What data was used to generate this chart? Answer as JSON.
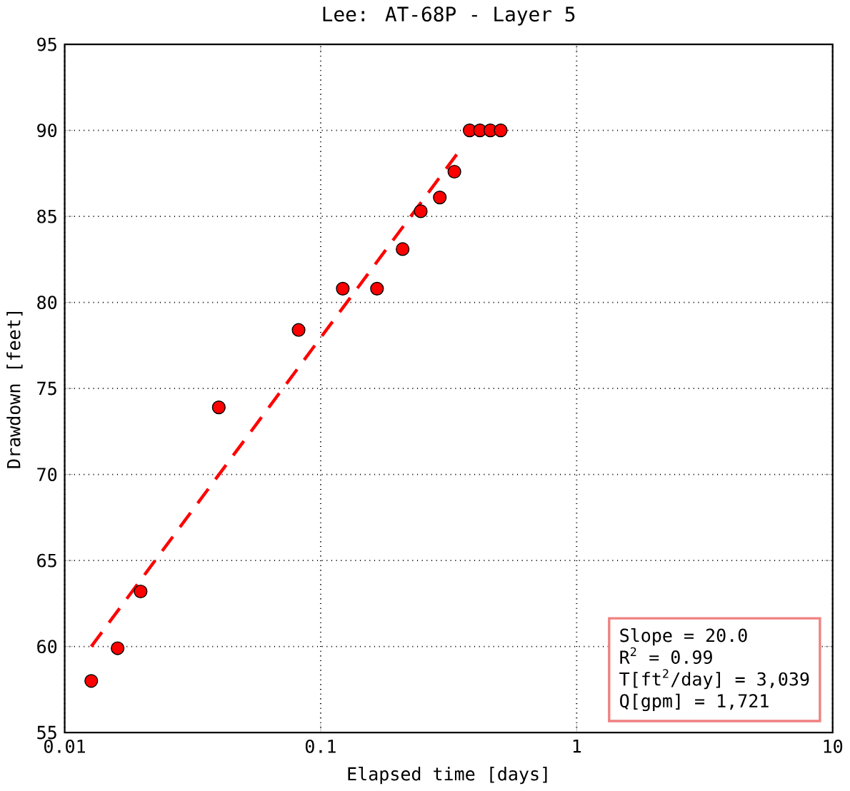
{
  "chart_data": {
    "type": "scatter",
    "title": "Lee: AT-68P - Layer 5",
    "xlabel": "Elapsed time [days]",
    "ylabel": "Drawdown [feet]",
    "log": "x",
    "xlim": [
      0.01,
      10
    ],
    "ylim": [
      55,
      95
    ],
    "xticks": [
      0.01,
      0.1,
      1,
      10
    ],
    "yticks": [
      55,
      60,
      65,
      70,
      75,
      80,
      85,
      90,
      95
    ],
    "grid": true,
    "marker": "circle",
    "series": [
      {
        "type": "scatter",
        "color": "#ff0000",
        "x": [
          0.0127,
          0.0161,
          0.0198,
          0.04,
          0.082,
          0.122,
          0.166,
          0.209,
          0.246,
          0.292,
          0.333,
          0.382,
          0.419,
          0.46,
          0.505
        ],
        "values": [
          58.0,
          59.9,
          63.2,
          73.9,
          78.4,
          80.8,
          80.8,
          83.1,
          85.3,
          86.1,
          87.6,
          90,
          90,
          90,
          90
        ]
      },
      {
        "type": "line",
        "color": "#ff0000",
        "line_style": "dashed",
        "marker": "none",
        "x": [
          0.0127,
          0.34
        ],
        "values": [
          60.0,
          88.6
        ]
      }
    ],
    "annotations": [
      "Slope         =  20.0",
      "R$^{2}$            =  0.99",
      "T[ft$^{2}$/day] = 3,039",
      "Q[gpm]        = 1,721"
    ]
  }
}
